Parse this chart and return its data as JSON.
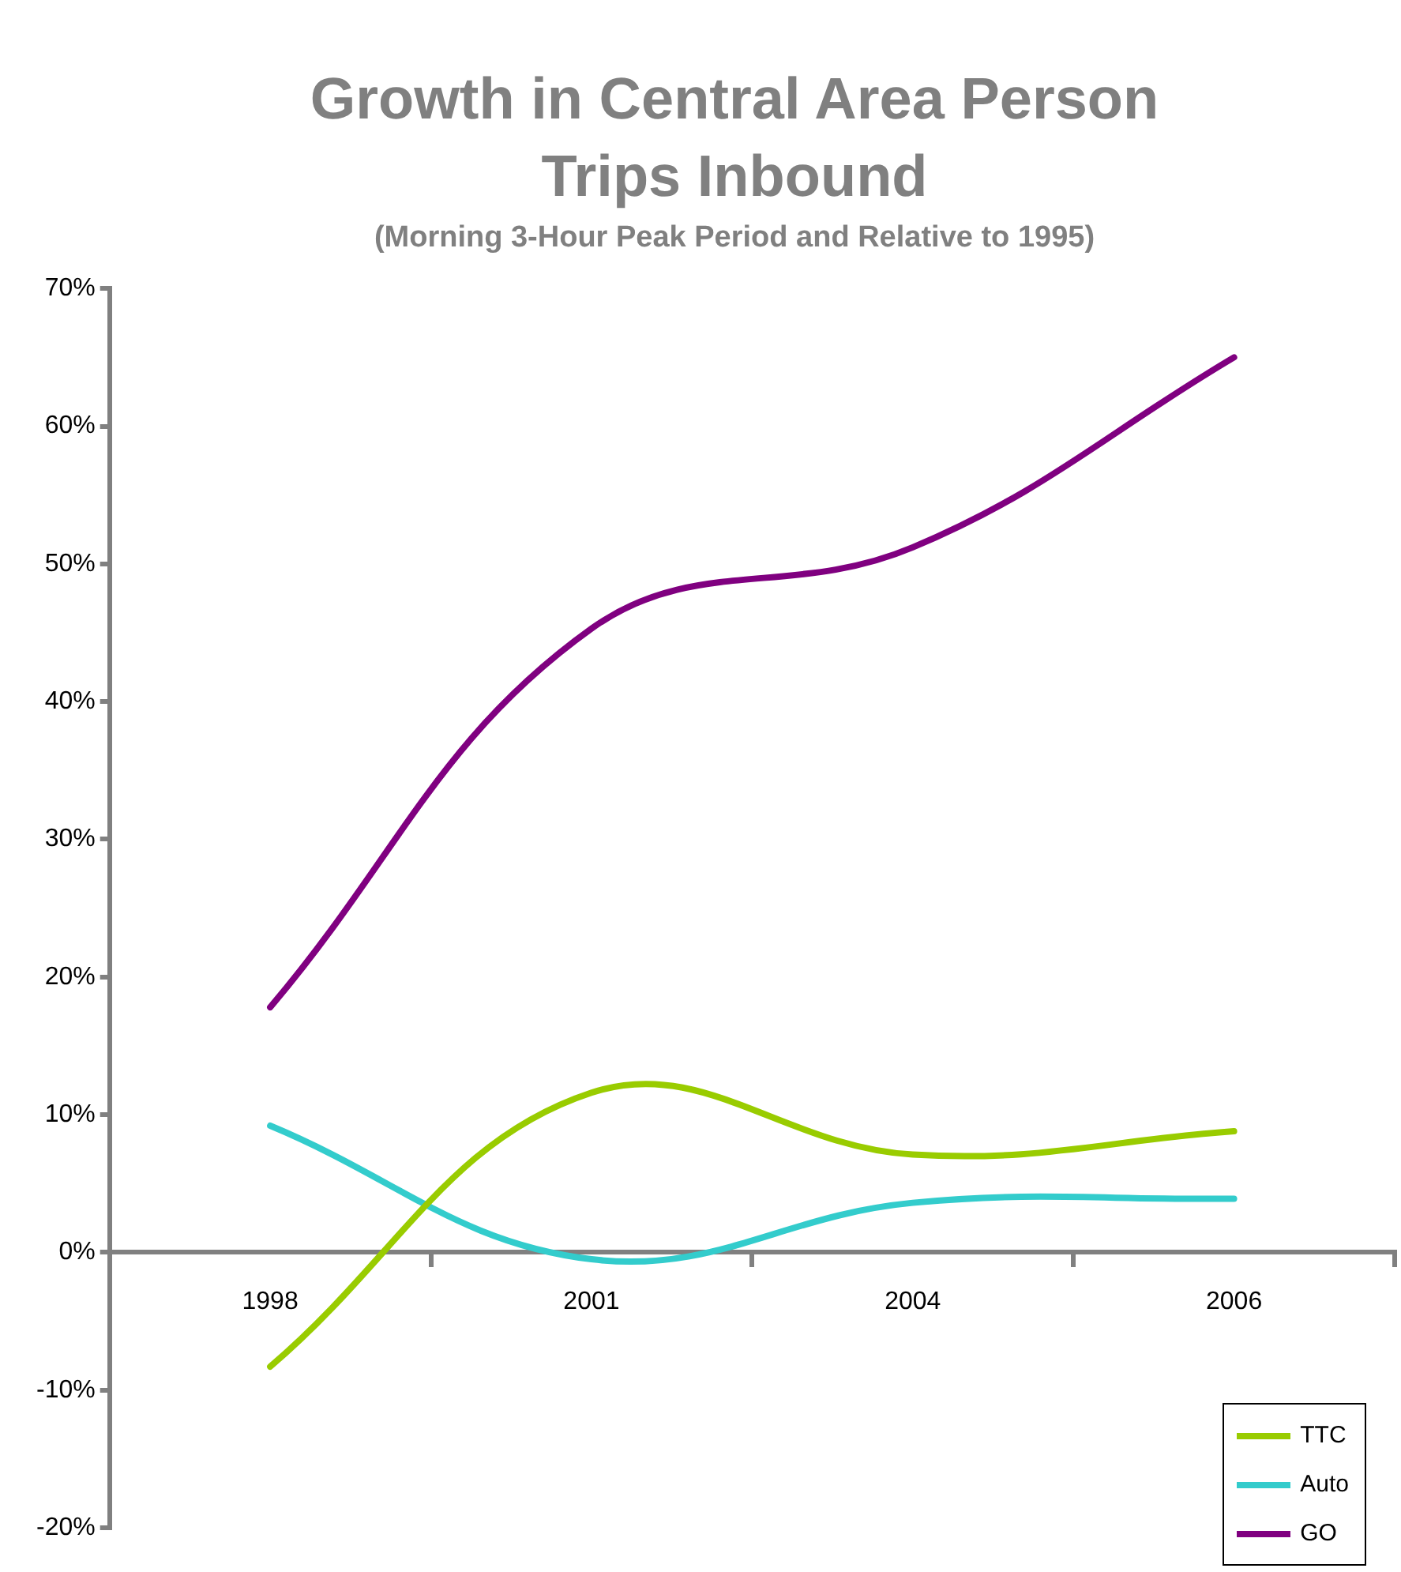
{
  "chart_data": {
    "type": "line",
    "title": "Growth in Central Area Person Trips Inbound",
    "subtitle": "(Morning 3-Hour Peak Period and Relative to 1995)",
    "categories": [
      "1998",
      "2001",
      "2004",
      "2006"
    ],
    "series": [
      {
        "name": "TTC",
        "color": "#99cc00",
        "values": [
          -8.3,
          11.6,
          7.1,
          8.8
        ]
      },
      {
        "name": "Auto",
        "color": "#33cccc",
        "values": [
          9.2,
          -0.5,
          3.6,
          3.9
        ]
      },
      {
        "name": "GO",
        "color": "#800080",
        "values": [
          17.8,
          45.3,
          51.2,
          65.0
        ]
      }
    ],
    "ylim": [
      -20,
      70
    ],
    "yticks": [
      {
        "value": -20,
        "label": "-20%"
      },
      {
        "value": -10,
        "label": "-10%"
      },
      {
        "value": 0,
        "label": "0%"
      },
      {
        "value": 10,
        "label": "10%"
      },
      {
        "value": 20,
        "label": "20%"
      },
      {
        "value": 30,
        "label": "30%"
      },
      {
        "value": 40,
        "label": "40%"
      },
      {
        "value": 50,
        "label": "50%"
      },
      {
        "value": 60,
        "label": "60%"
      },
      {
        "value": 70,
        "label": "70%"
      }
    ],
    "grid": false,
    "legend": "bottom right",
    "marker": "none",
    "line_style": "solid"
  }
}
